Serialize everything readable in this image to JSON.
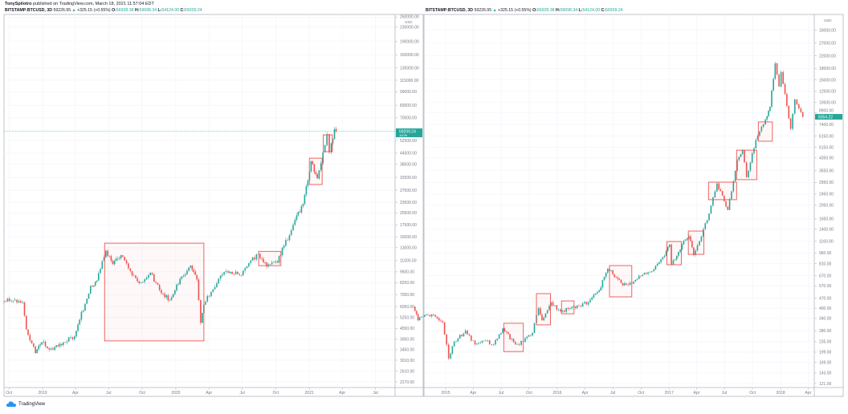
{
  "header": {
    "author": "TonySpilotro",
    "published_text": "published on TradingView.com, March 18, 2021 11:57:04 EDT"
  },
  "footer": {
    "brand": "TradingView",
    "logo_icon": "tradingview-cloud-icon"
  },
  "colors": {
    "up": "#26a69a",
    "down": "#ef5350",
    "box": "#ef5350",
    "grid": "#f0f3fa",
    "axis": "#787b86"
  },
  "chart_data": [
    {
      "type": "candlestick",
      "symbol_line": {
        "symbol": "BITSTAMP:BTCUSD, 3D",
        "last": "59226.95",
        "change": "+325.15 (+0.55%)",
        "o_label": "O:",
        "o": "56928.38",
        "h_label": "H:",
        "h": "59698.34",
        "l_label": "L:",
        "l": "54124.00",
        "c_label": "C:",
        "c": "59209.24"
      },
      "scale": "log",
      "currency": "USD",
      "last_price_label": "59209.24",
      "last_price_sublabel": "1d 9h",
      "last_price": 59209.24,
      "xlim": [
        "2018-09-10",
        "2021-08-20"
      ],
      "ylim": [
        2000,
        290000
      ],
      "x_ticks": [
        [
          "2018-10-01",
          "Oct"
        ],
        [
          "2019-01-01",
          "2019"
        ],
        [
          "2019-04-01",
          "Apr"
        ],
        [
          "2019-07-01",
          "Jul"
        ],
        [
          "2019-10-01",
          "Oct"
        ],
        [
          "2020-01-01",
          "2020"
        ],
        [
          "2020-04-01",
          "Apr"
        ],
        [
          "2020-07-01",
          "Jul"
        ],
        [
          "2020-10-01",
          "Oct"
        ],
        [
          "2021-01-01",
          "2021"
        ],
        [
          "2021-04-01",
          "Apr"
        ],
        [
          "2021-07-01",
          "Jul"
        ]
      ],
      "y_ticks": [
        260000,
        230000,
        190000,
        160000,
        135000,
        115000,
        99000,
        83000,
        70500,
        52500,
        44500,
        38500,
        32500,
        27500,
        23500,
        20500,
        17500,
        15000,
        13000,
        11000,
        9500,
        8250,
        7050,
        6050,
        5250,
        4550,
        3950,
        3450,
        3010,
        2610,
        2270
      ],
      "series": [
        {
          "x": "2018-09-15",
          "y": 6500
        },
        {
          "x": "2018-10-15",
          "y": 6550
        },
        {
          "x": "2018-11-10",
          "y": 6400
        },
        {
          "x": "2018-11-20",
          "y": 4500
        },
        {
          "x": "2018-12-15",
          "y": 3300
        },
        {
          "x": "2019-01-01",
          "y": 3800
        },
        {
          "x": "2019-02-01",
          "y": 3450
        },
        {
          "x": "2019-03-01",
          "y": 3800
        },
        {
          "x": "2019-04-01",
          "y": 4100
        },
        {
          "x": "2019-04-15",
          "y": 5100
        },
        {
          "x": "2019-05-15",
          "y": 7900
        },
        {
          "x": "2019-06-01",
          "y": 8500
        },
        {
          "x": "2019-06-26",
          "y": 12500
        },
        {
          "x": "2019-07-15",
          "y": 10500
        },
        {
          "x": "2019-08-06",
          "y": 11800
        },
        {
          "x": "2019-09-01",
          "y": 9600
        },
        {
          "x": "2019-09-25",
          "y": 8200
        },
        {
          "x": "2019-10-26",
          "y": 9400
        },
        {
          "x": "2019-11-25",
          "y": 7200
        },
        {
          "x": "2019-12-18",
          "y": 6600
        },
        {
          "x": "2020-01-15",
          "y": 8700
        },
        {
          "x": "2020-02-13",
          "y": 10300
        },
        {
          "x": "2020-03-01",
          "y": 8600
        },
        {
          "x": "2020-03-12",
          "y": 4900
        },
        {
          "x": "2020-03-20",
          "y": 6200
        },
        {
          "x": "2020-04-30",
          "y": 8700
        },
        {
          "x": "2020-05-15",
          "y": 9500
        },
        {
          "x": "2020-06-01",
          "y": 9500
        },
        {
          "x": "2020-07-01",
          "y": 9100
        },
        {
          "x": "2020-07-27",
          "y": 11000
        },
        {
          "x": "2020-08-17",
          "y": 12000
        },
        {
          "x": "2020-09-08",
          "y": 10200
        },
        {
          "x": "2020-10-08",
          "y": 10700
        },
        {
          "x": "2020-10-21",
          "y": 13000
        },
        {
          "x": "2020-11-10",
          "y": 15300
        },
        {
          "x": "2020-11-25",
          "y": 18700
        },
        {
          "x": "2020-12-17",
          "y": 23000
        },
        {
          "x": "2021-01-08",
          "y": 40000
        },
        {
          "x": "2021-01-25",
          "y": 32000
        },
        {
          "x": "2021-02-10",
          "y": 45000
        },
        {
          "x": "2021-02-21",
          "y": 57000
        },
        {
          "x": "2021-02-28",
          "y": 45000
        },
        {
          "x": "2021-03-13",
          "y": 61000
        },
        {
          "x": "2021-03-18",
          "y": 59209
        }
      ],
      "annotations": [
        {
          "type": "rectangle",
          "x0": "2019-06-20",
          "x1": "2020-03-18",
          "y0": 3870,
          "y1": 13800
        },
        {
          "type": "rectangle",
          "x0": "2020-08-15",
          "x1": "2020-10-15",
          "y0": 10300,
          "y1": 12400
        },
        {
          "type": "rectangle",
          "x0": "2021-01-01",
          "x1": "2021-02-05",
          "y0": 29600,
          "y1": 41700
        },
        {
          "type": "rectangle",
          "x0": "2021-02-08",
          "x1": "2021-03-05",
          "y0": 45400,
          "y1": 56500
        }
      ]
    },
    {
      "type": "candlestick",
      "symbol_line": {
        "symbol": "BITSTAMP:BTCUSD, 3D",
        "last": "59226.95",
        "change": "+325.15 (+0.55%)",
        "o_label": "O:",
        "o": "56928.38",
        "h_label": "H:",
        "h": "59698.34",
        "l_label": "L:",
        "l": "54124.00",
        "c_label": "C:",
        "c": "59209.24"
      },
      "scale": "log",
      "currency": "USD",
      "last_price_label": "8354.22",
      "last_price": 8354.22,
      "xlim": [
        "2014-09-01",
        "2018-04-20"
      ],
      "ylim": [
        110,
        40000
      ],
      "x_ticks": [
        [
          "2015-01-01",
          "2015"
        ],
        [
          "2015-04-01",
          "Apr"
        ],
        [
          "2015-07-01",
          "Jul"
        ],
        [
          "2015-10-01",
          "Oct"
        ],
        [
          "2016-01-01",
          "2016"
        ],
        [
          "2016-04-01",
          "Apr"
        ],
        [
          "2016-07-01",
          "Jul"
        ],
        [
          "2016-10-01",
          "Oct"
        ],
        [
          "2017-01-01",
          "2017"
        ],
        [
          "2017-04-01",
          "Apr"
        ],
        [
          "2017-07-01",
          "Jul"
        ],
        [
          "2017-10-01",
          "Oct"
        ],
        [
          "2018-01-01",
          "2018"
        ],
        [
          "2018-04-01",
          "Apr"
        ]
      ],
      "y_ticks": [
        33000,
        27000,
        22000,
        18000,
        15000,
        12500,
        10500,
        8900,
        7400,
        6150,
        5150,
        4350,
        3550,
        2950,
        2450,
        2050,
        1650,
        1400,
        1160,
        960,
        810,
        670,
        570,
        470,
        400,
        340,
        280,
        235,
        199,
        169,
        143,
        121
      ],
      "series": [
        {
          "x": "2014-09-20",
          "y": 410
        },
        {
          "x": "2014-10-05",
          "y": 330
        },
        {
          "x": "2014-11-01",
          "y": 360
        },
        {
          "x": "2014-12-01",
          "y": 350
        },
        {
          "x": "2014-12-25",
          "y": 320
        },
        {
          "x": "2015-01-14",
          "y": 180
        },
        {
          "x": "2015-02-01",
          "y": 235
        },
        {
          "x": "2015-03-10",
          "y": 280
        },
        {
          "x": "2015-04-10",
          "y": 225
        },
        {
          "x": "2015-05-15",
          "y": 238
        },
        {
          "x": "2015-06-10",
          "y": 225
        },
        {
          "x": "2015-07-10",
          "y": 290
        },
        {
          "x": "2015-08-20",
          "y": 225
        },
        {
          "x": "2015-09-15",
          "y": 235
        },
        {
          "x": "2015-10-15",
          "y": 270
        },
        {
          "x": "2015-11-04",
          "y": 400
        },
        {
          "x": "2015-11-15",
          "y": 330
        },
        {
          "x": "2015-12-15",
          "y": 440
        },
        {
          "x": "2016-01-15",
          "y": 380
        },
        {
          "x": "2016-02-15",
          "y": 400
        },
        {
          "x": "2016-03-15",
          "y": 415
        },
        {
          "x": "2016-04-15",
          "y": 440
        },
        {
          "x": "2016-05-20",
          "y": 530
        },
        {
          "x": "2016-06-17",
          "y": 750
        },
        {
          "x": "2016-07-15",
          "y": 650
        },
        {
          "x": "2016-08-05",
          "y": 575
        },
        {
          "x": "2016-09-10",
          "y": 610
        },
        {
          "x": "2016-10-15",
          "y": 700
        },
        {
          "x": "2016-11-15",
          "y": 740
        },
        {
          "x": "2016-12-20",
          "y": 920
        },
        {
          "x": "2017-01-05",
          "y": 1100
        },
        {
          "x": "2017-01-12",
          "y": 800
        },
        {
          "x": "2017-02-15",
          "y": 1100
        },
        {
          "x": "2017-03-10",
          "y": 1250
        },
        {
          "x": "2017-03-25",
          "y": 930
        },
        {
          "x": "2017-04-20",
          "y": 1250
        },
        {
          "x": "2017-05-15",
          "y": 1800
        },
        {
          "x": "2017-06-10",
          "y": 2900
        },
        {
          "x": "2017-07-15",
          "y": 1900
        },
        {
          "x": "2017-08-15",
          "y": 4200
        },
        {
          "x": "2017-09-01",
          "y": 4900
        },
        {
          "x": "2017-09-15",
          "y": 3200
        },
        {
          "x": "2017-10-15",
          "y": 5800
        },
        {
          "x": "2017-11-15",
          "y": 8000
        },
        {
          "x": "2017-11-30",
          "y": 9800
        },
        {
          "x": "2017-12-17",
          "y": 19500
        },
        {
          "x": "2017-12-30",
          "y": 13500
        },
        {
          "x": "2018-01-06",
          "y": 17000
        },
        {
          "x": "2018-02-06",
          "y": 6900
        },
        {
          "x": "2018-02-20",
          "y": 11000
        },
        {
          "x": "2018-03-18",
          "y": 8354
        }
      ],
      "annotations": [
        {
          "type": "rectangle",
          "x0": "2015-07-10",
          "x1": "2015-09-12",
          "y0": 201,
          "y1": 315
        },
        {
          "type": "rectangle",
          "x0": "2015-10-25",
          "x1": "2015-12-10",
          "y0": 307,
          "y1": 504
        },
        {
          "type": "rectangle",
          "x0": "2016-01-15",
          "x1": "2016-02-25",
          "y0": 366,
          "y1": 449
        },
        {
          "type": "rectangle",
          "x0": "2016-06-20",
          "x1": "2016-09-01",
          "y0": 479,
          "y1": 787
        },
        {
          "type": "rectangle",
          "x0": "2016-12-25",
          "x1": "2017-02-10",
          "y0": 797,
          "y1": 1153
        },
        {
          "type": "rectangle",
          "x0": "2017-03-05",
          "x1": "2017-04-25",
          "y0": 940,
          "y1": 1361
        },
        {
          "type": "rectangle",
          "x0": "2017-05-10",
          "x1": "2017-08-10",
          "y0": 2240,
          "y1": 2960
        },
        {
          "type": "rectangle",
          "x0": "2017-08-10",
          "x1": "2017-10-15",
          "y0": 3080,
          "y1": 4920
        },
        {
          "type": "rectangle",
          "x0": "2017-10-20",
          "x1": "2017-12-05",
          "y0": 5670,
          "y1": 7700
        }
      ]
    }
  ]
}
